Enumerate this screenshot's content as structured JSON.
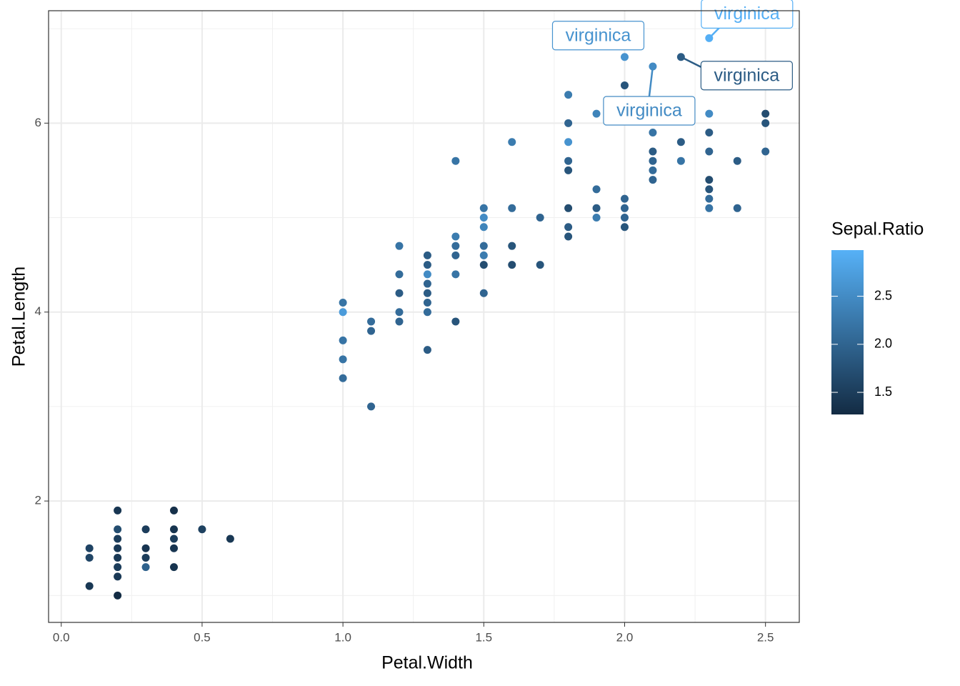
{
  "chart_data": {
    "type": "scatter",
    "x_label": "Petal.Width",
    "y_label": "Petal.Length",
    "xlim": [
      -0.045,
      2.62
    ],
    "ylim": [
      0.715,
      7.19
    ],
    "xticks": [
      {
        "value": 0,
        "label": "0.0"
      },
      0.5,
      {
        "value": 1,
        "label": "1.0"
      },
      1.5,
      {
        "value": 2,
        "label": "2.0"
      },
      2.5
    ],
    "yticks": [
      2,
      4,
      6
    ],
    "grid": true,
    "color_label": "Sepal.Ratio",
    "color_scale": {
      "low": "#132B43",
      "high": "#56B1F7",
      "lim": [
        1.27,
        2.98
      ],
      "ticks": [
        1.5,
        {
          "value": 2,
          "label": "2.0"
        },
        2.5
      ]
    },
    "x": [
      0.1,
      0.1,
      0.1,
      0.2,
      0.2,
      0.2,
      0.2,
      0.2,
      0.2,
      0.2,
      0.2,
      0.3,
      0.3,
      0.3,
      0.3,
      0.4,
      0.4,
      0.4,
      0.4,
      0.4,
      0.5,
      0.6,
      1.0,
      1.0,
      1.0,
      1.0,
      1.0,
      1.1,
      1.1,
      1.1,
      1.2,
      1.2,
      1.2,
      1.2,
      1.2,
      1.3,
      1.3,
      1.3,
      1.3,
      1.3,
      1.3,
      1.3,
      1.3,
      1.4,
      1.4,
      1.4,
      1.4,
      1.4,
      1.4,
      1.5,
      1.5,
      1.5,
      1.5,
      1.5,
      1.5,
      1.5,
      1.6,
      1.6,
      1.6,
      1.6,
      1.7,
      1.7,
      1.8,
      1.8,
      1.8,
      1.8,
      1.8,
      1.8,
      1.8,
      1.8,
      1.9,
      1.9,
      1.9,
      1.9,
      2.0,
      2.0,
      2.0,
      2.0,
      2.0,
      2.0,
      2.1,
      2.1,
      2.1,
      2.1,
      2.1,
      2.1,
      2.2,
      2.2,
      2.2,
      2.3,
      2.3,
      2.3,
      2.3,
      2.3,
      2.3,
      2.3,
      2.4,
      2.4,
      2.5,
      2.5,
      2.5,
      2.3
    ],
    "y": [
      1.5,
      1.4,
      1.1,
      1.9,
      1.7,
      1.6,
      1.5,
      1.4,
      1.3,
      1.2,
      1.0,
      1.7,
      1.5,
      1.4,
      1.3,
      1.9,
      1.7,
      1.6,
      1.5,
      1.3,
      1.7,
      1.6,
      4.1,
      4.0,
      3.7,
      3.5,
      3.3,
      3.9,
      3.8,
      3.0,
      4.7,
      4.4,
      4.2,
      4.0,
      3.9,
      4.6,
      4.5,
      4.4,
      4.3,
      4.2,
      4.1,
      4.0,
      3.6,
      5.6,
      4.8,
      4.7,
      4.6,
      4.4,
      3.9,
      5.1,
      5.0,
      4.9,
      4.7,
      4.6,
      4.5,
      4.2,
      5.8,
      5.1,
      4.7,
      4.5,
      5.0,
      4.5,
      6.3,
      6.0,
      5.8,
      5.6,
      5.5,
      5.1,
      4.9,
      4.8,
      6.1,
      5.3,
      5.1,
      5.0,
      6.7,
      6.4,
      5.2,
      5.1,
      5.0,
      4.9,
      6.6,
      5.9,
      5.7,
      5.6,
      5.5,
      5.4,
      6.7,
      5.8,
      5.6,
      6.1,
      5.9,
      5.7,
      5.4,
      5.3,
      5.2,
      5.1,
      5.6,
      5.1,
      6.1,
      6.0,
      5.7,
      6.9
    ],
    "color_values": [
      1.58,
      1.6,
      1.43,
      1.41,
      1.7,
      1.5,
      1.45,
      1.45,
      1.5,
      1.45,
      1.28,
      1.5,
      1.4,
      1.5,
      1.96,
      1.34,
      1.38,
      1.5,
      1.4,
      1.38,
      1.55,
      1.43,
      2.2,
      2.7,
      2.2,
      2.2,
      2.1,
      2.1,
      2.0,
      2.0,
      2.2,
      2.1,
      1.9,
      2.1,
      2.0,
      1.9,
      1.9,
      2.5,
      2.0,
      1.9,
      2.0,
      2.1,
      1.9,
      2.2,
      2.3,
      2.1,
      2.0,
      2.2,
      1.8,
      2.2,
      2.5,
      2.4,
      2.1,
      2.3,
      1.7,
      2.0,
      2.3,
      2.1,
      1.8,
      1.7,
      2.0,
      1.8,
      2.3,
      2.0,
      2.6,
      2.0,
      1.8,
      1.7,
      1.9,
      1.8,
      2.4,
      2.1,
      1.9,
      2.3,
      2.6,
      1.8,
      2.0,
      2.0,
      2.0,
      1.8,
      2.5,
      2.2,
      1.9,
      2.0,
      2.1,
      2.0,
      1.9,
      1.9,
      2.2,
      2.5,
      1.9,
      2.0,
      1.7,
      1.8,
      2.1,
      2.2,
      1.9,
      2.0,
      1.7,
      1.8,
      2.0,
      2.96
    ],
    "annotations": [
      {
        "text": "virginica",
        "x": 2.0,
        "y": 6.7
      },
      {
        "text": "virginica",
        "x": 2.1,
        "y": 6.6
      },
      {
        "text": "virginica",
        "x": 2.2,
        "y": 6.7
      },
      {
        "text": "virginica",
        "x": 2.3,
        "y": 6.9
      }
    ]
  }
}
